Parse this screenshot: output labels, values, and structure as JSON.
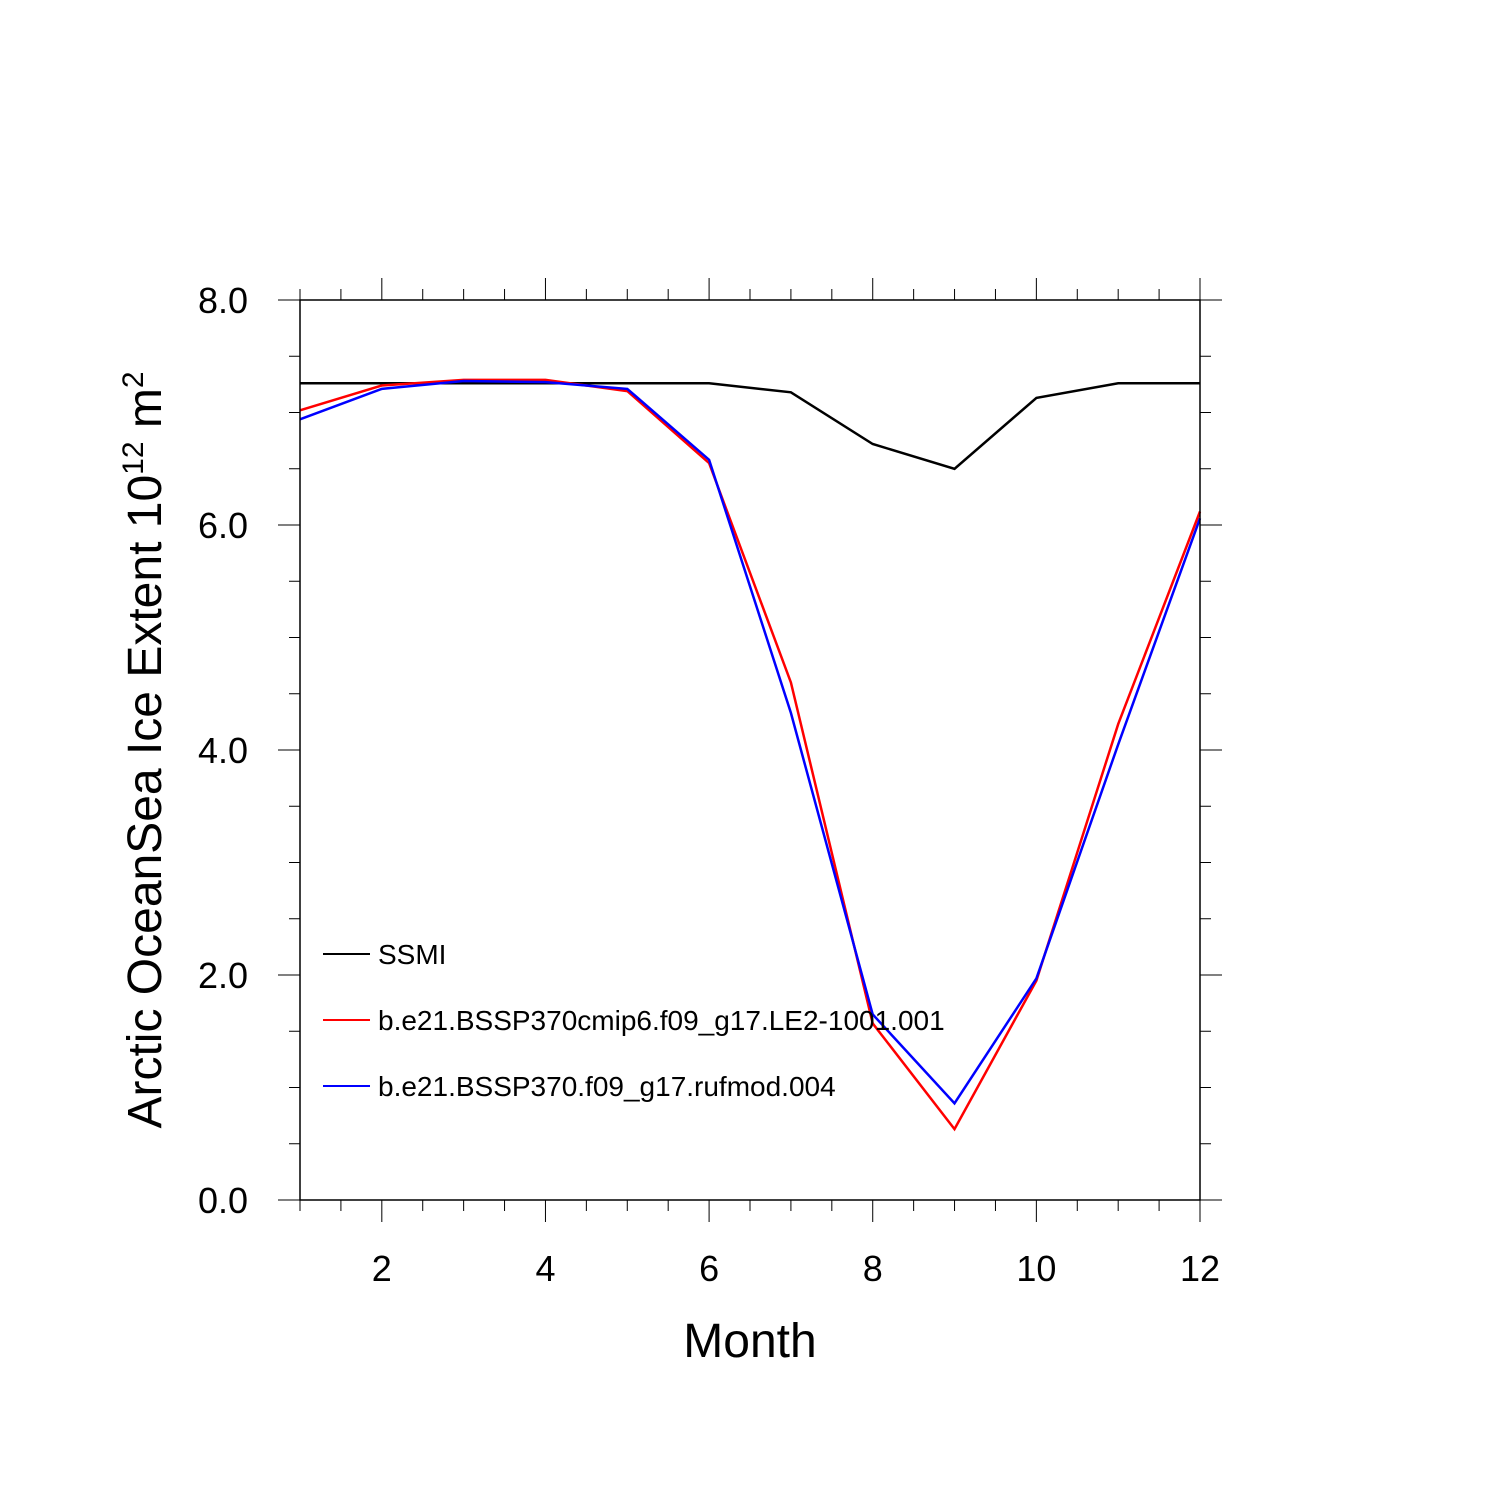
{
  "chart_data": {
    "type": "line",
    "xlabel": "Month",
    "ylabel": "Arctic OceanSea Ice Extent 10",
    "ylabel_sup": "12",
    "ylabel_unit": " m",
    "ylabel_unit_sup": "2",
    "xlim": [
      1,
      12
    ],
    "ylim": [
      0,
      8
    ],
    "x_ticks": [
      2,
      4,
      6,
      8,
      10,
      12
    ],
    "x_tick_labels": [
      "2",
      "4",
      "6",
      "8",
      "10",
      "12"
    ],
    "y_ticks": [
      0,
      2,
      4,
      6,
      8
    ],
    "y_tick_labels": [
      "0.0",
      "2.0",
      "4.0",
      "6.0",
      "8.0"
    ],
    "grid": false,
    "legend_position": "bottom-left",
    "x": [
      1,
      2,
      3,
      4,
      5,
      6,
      7,
      8,
      9,
      10,
      11,
      12
    ],
    "series": [
      {
        "name": "SSMI",
        "color": "#000000",
        "values": [
          7.26,
          7.26,
          7.26,
          7.26,
          7.26,
          7.26,
          7.18,
          6.72,
          6.5,
          7.13,
          7.26,
          7.26
        ]
      },
      {
        "name": "b.e21.BSSP370cmip6.f09_g17.LE2-1001.001",
        "color": "#ff0000",
        "values": [
          7.02,
          7.24,
          7.29,
          7.29,
          7.19,
          6.55,
          4.6,
          1.57,
          0.63,
          1.95,
          4.23,
          6.12
        ]
      },
      {
        "name": "b.e21.BSSP370.f09_g17.rufmod.004",
        "color": "#0000ff",
        "values": [
          6.94,
          7.21,
          7.28,
          7.27,
          7.21,
          6.58,
          4.33,
          1.65,
          0.86,
          1.97,
          4.05,
          6.06
        ]
      }
    ]
  }
}
